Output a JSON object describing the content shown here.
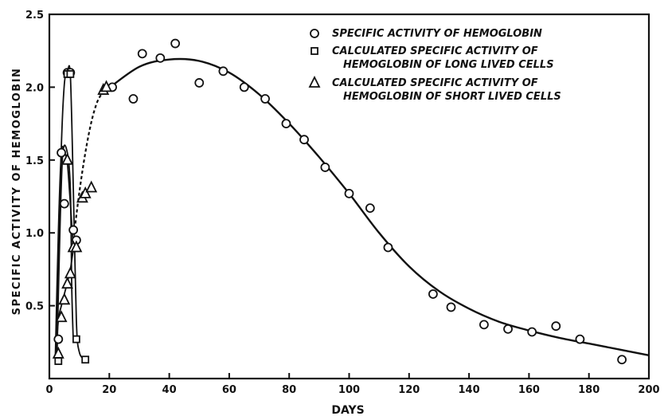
{
  "chart_data": {
    "type": "scatter",
    "title": "",
    "xlabel": "DAYS",
    "ylabel": "SPECIFIC ACTIVITY OF HEMOGLOBIN",
    "xlim": [
      0,
      200
    ],
    "ylim": [
      0,
      2.5
    ],
    "x_ticks": [
      0,
      20,
      40,
      60,
      80,
      100,
      120,
      140,
      160,
      180,
      200
    ],
    "x_tick_labels": [
      "0",
      "20",
      "40",
      "60",
      "80",
      "100",
      "120",
      "140",
      "160",
      "180",
      "200"
    ],
    "y_ticks": [
      0.5,
      1.0,
      1.5,
      2.0,
      2.5
    ],
    "y_tick_labels": [
      "0.5",
      "1.0",
      "1.5",
      "2.0",
      "2.5"
    ],
    "grid": false,
    "legend_position": "top-right",
    "legend": [
      {
        "marker": "circle",
        "lines": [
          "SPECIFIC ACTIVITY OF HEMOGLOBIN"
        ]
      },
      {
        "marker": "square",
        "lines": [
          "CALCULATED SPECIFIC ACTIVITY OF",
          "HEMOGLOBIN OF LONG LIVED CELLS"
        ]
      },
      {
        "marker": "triangle",
        "lines": [
          "CALCULATED SPECIFIC ACTIVITY OF",
          "HEMOGLOBIN OF SHORT LIVED CELLS"
        ]
      }
    ],
    "series": [
      {
        "marker": "circle",
        "points": [
          [
            3,
            0.27
          ],
          [
            4,
            1.55
          ],
          [
            5,
            1.2
          ],
          [
            6,
            2.1
          ],
          [
            7,
            2.1
          ],
          [
            8,
            1.02
          ],
          [
            9,
            0.95
          ],
          [
            21,
            2.0
          ],
          [
            28,
            1.92
          ],
          [
            31,
            2.23
          ],
          [
            37,
            2.2
          ],
          [
            42,
            2.3
          ],
          [
            50,
            2.03
          ],
          [
            58,
            2.11
          ],
          [
            65,
            2.0
          ],
          [
            72,
            1.92
          ],
          [
            79,
            1.75
          ],
          [
            85,
            1.64
          ],
          [
            92,
            1.45
          ],
          [
            100,
            1.27
          ],
          [
            107,
            1.17
          ],
          [
            113,
            0.9
          ],
          [
            128,
            0.58
          ],
          [
            134,
            0.49
          ],
          [
            145,
            0.37
          ],
          [
            153,
            0.34
          ],
          [
            161,
            0.32
          ],
          [
            169,
            0.36
          ],
          [
            177,
            0.27
          ],
          [
            191,
            0.13
          ]
        ],
        "fit_curve": [
          [
            19,
            1.98
          ],
          [
            30,
            2.14
          ],
          [
            40,
            2.19
          ],
          [
            50,
            2.18
          ],
          [
            60,
            2.1
          ],
          [
            70,
            1.95
          ],
          [
            80,
            1.75
          ],
          [
            90,
            1.52
          ],
          [
            100,
            1.27
          ],
          [
            110,
            1.0
          ],
          [
            120,
            0.77
          ],
          [
            130,
            0.6
          ],
          [
            140,
            0.48
          ],
          [
            150,
            0.39
          ],
          [
            160,
            0.33
          ],
          [
            170,
            0.28
          ],
          [
            180,
            0.24
          ],
          [
            190,
            0.2
          ],
          [
            200,
            0.16
          ]
        ],
        "dashed_curve": [
          [
            8,
            0.95
          ],
          [
            10,
            1.28
          ],
          [
            12,
            1.55
          ],
          [
            14,
            1.76
          ],
          [
            16,
            1.9
          ],
          [
            18,
            1.97
          ]
        ]
      },
      {
        "marker": "square",
        "points": [
          [
            3,
            0.12
          ],
          [
            6,
            2.09
          ],
          [
            7,
            2.09
          ],
          [
            9,
            0.27
          ],
          [
            12,
            0.13
          ]
        ],
        "curves": [
          [
            [
              2,
              0.12
            ],
            [
              3,
              0.8
            ],
            [
              4,
              1.6
            ],
            [
              5,
              2.02
            ],
            [
              6,
              2.1
            ],
            [
              7,
              2.08
            ],
            [
              8,
              1.3
            ],
            [
              9,
              0.4
            ],
            [
              10,
              0.18
            ],
            [
              12,
              0.13
            ]
          ],
          [
            [
              2.5,
              0.1
            ],
            [
              3.5,
              1.0
            ],
            [
              4.5,
              1.55
            ],
            [
              6,
              1.55
            ],
            [
              7,
              1.3
            ],
            [
              7.5,
              0.6
            ],
            [
              8,
              0.25
            ]
          ]
        ]
      },
      {
        "marker": "triangle",
        "points": [
          [
            3,
            0.17
          ],
          [
            4,
            0.42
          ],
          [
            5,
            0.54
          ],
          [
            6,
            0.65
          ],
          [
            7,
            0.72
          ],
          [
            8,
            0.9
          ],
          [
            9,
            0.9
          ],
          [
            11,
            1.24
          ],
          [
            12,
            1.27
          ],
          [
            14,
            1.31
          ],
          [
            18,
            1.98
          ],
          [
            19,
            2.0
          ],
          [
            6,
            1.5
          ]
        ],
        "curves": [
          [
            [
              2,
              0.12
            ],
            [
              3,
              0.4
            ],
            [
              4,
              0.5
            ],
            [
              5,
              0.58
            ],
            [
              6,
              0.66
            ],
            [
              7,
              0.75
            ],
            [
              8,
              0.88
            ],
            [
              9,
              0.95
            ]
          ],
          [
            [
              2,
              0.15
            ],
            [
              3,
              1.0
            ],
            [
              4,
              1.55
            ],
            [
              5,
              1.55
            ],
            [
              6,
              1.48
            ],
            [
              7,
              1.2
            ],
            [
              8,
              0.9
            ]
          ]
        ]
      }
    ]
  }
}
